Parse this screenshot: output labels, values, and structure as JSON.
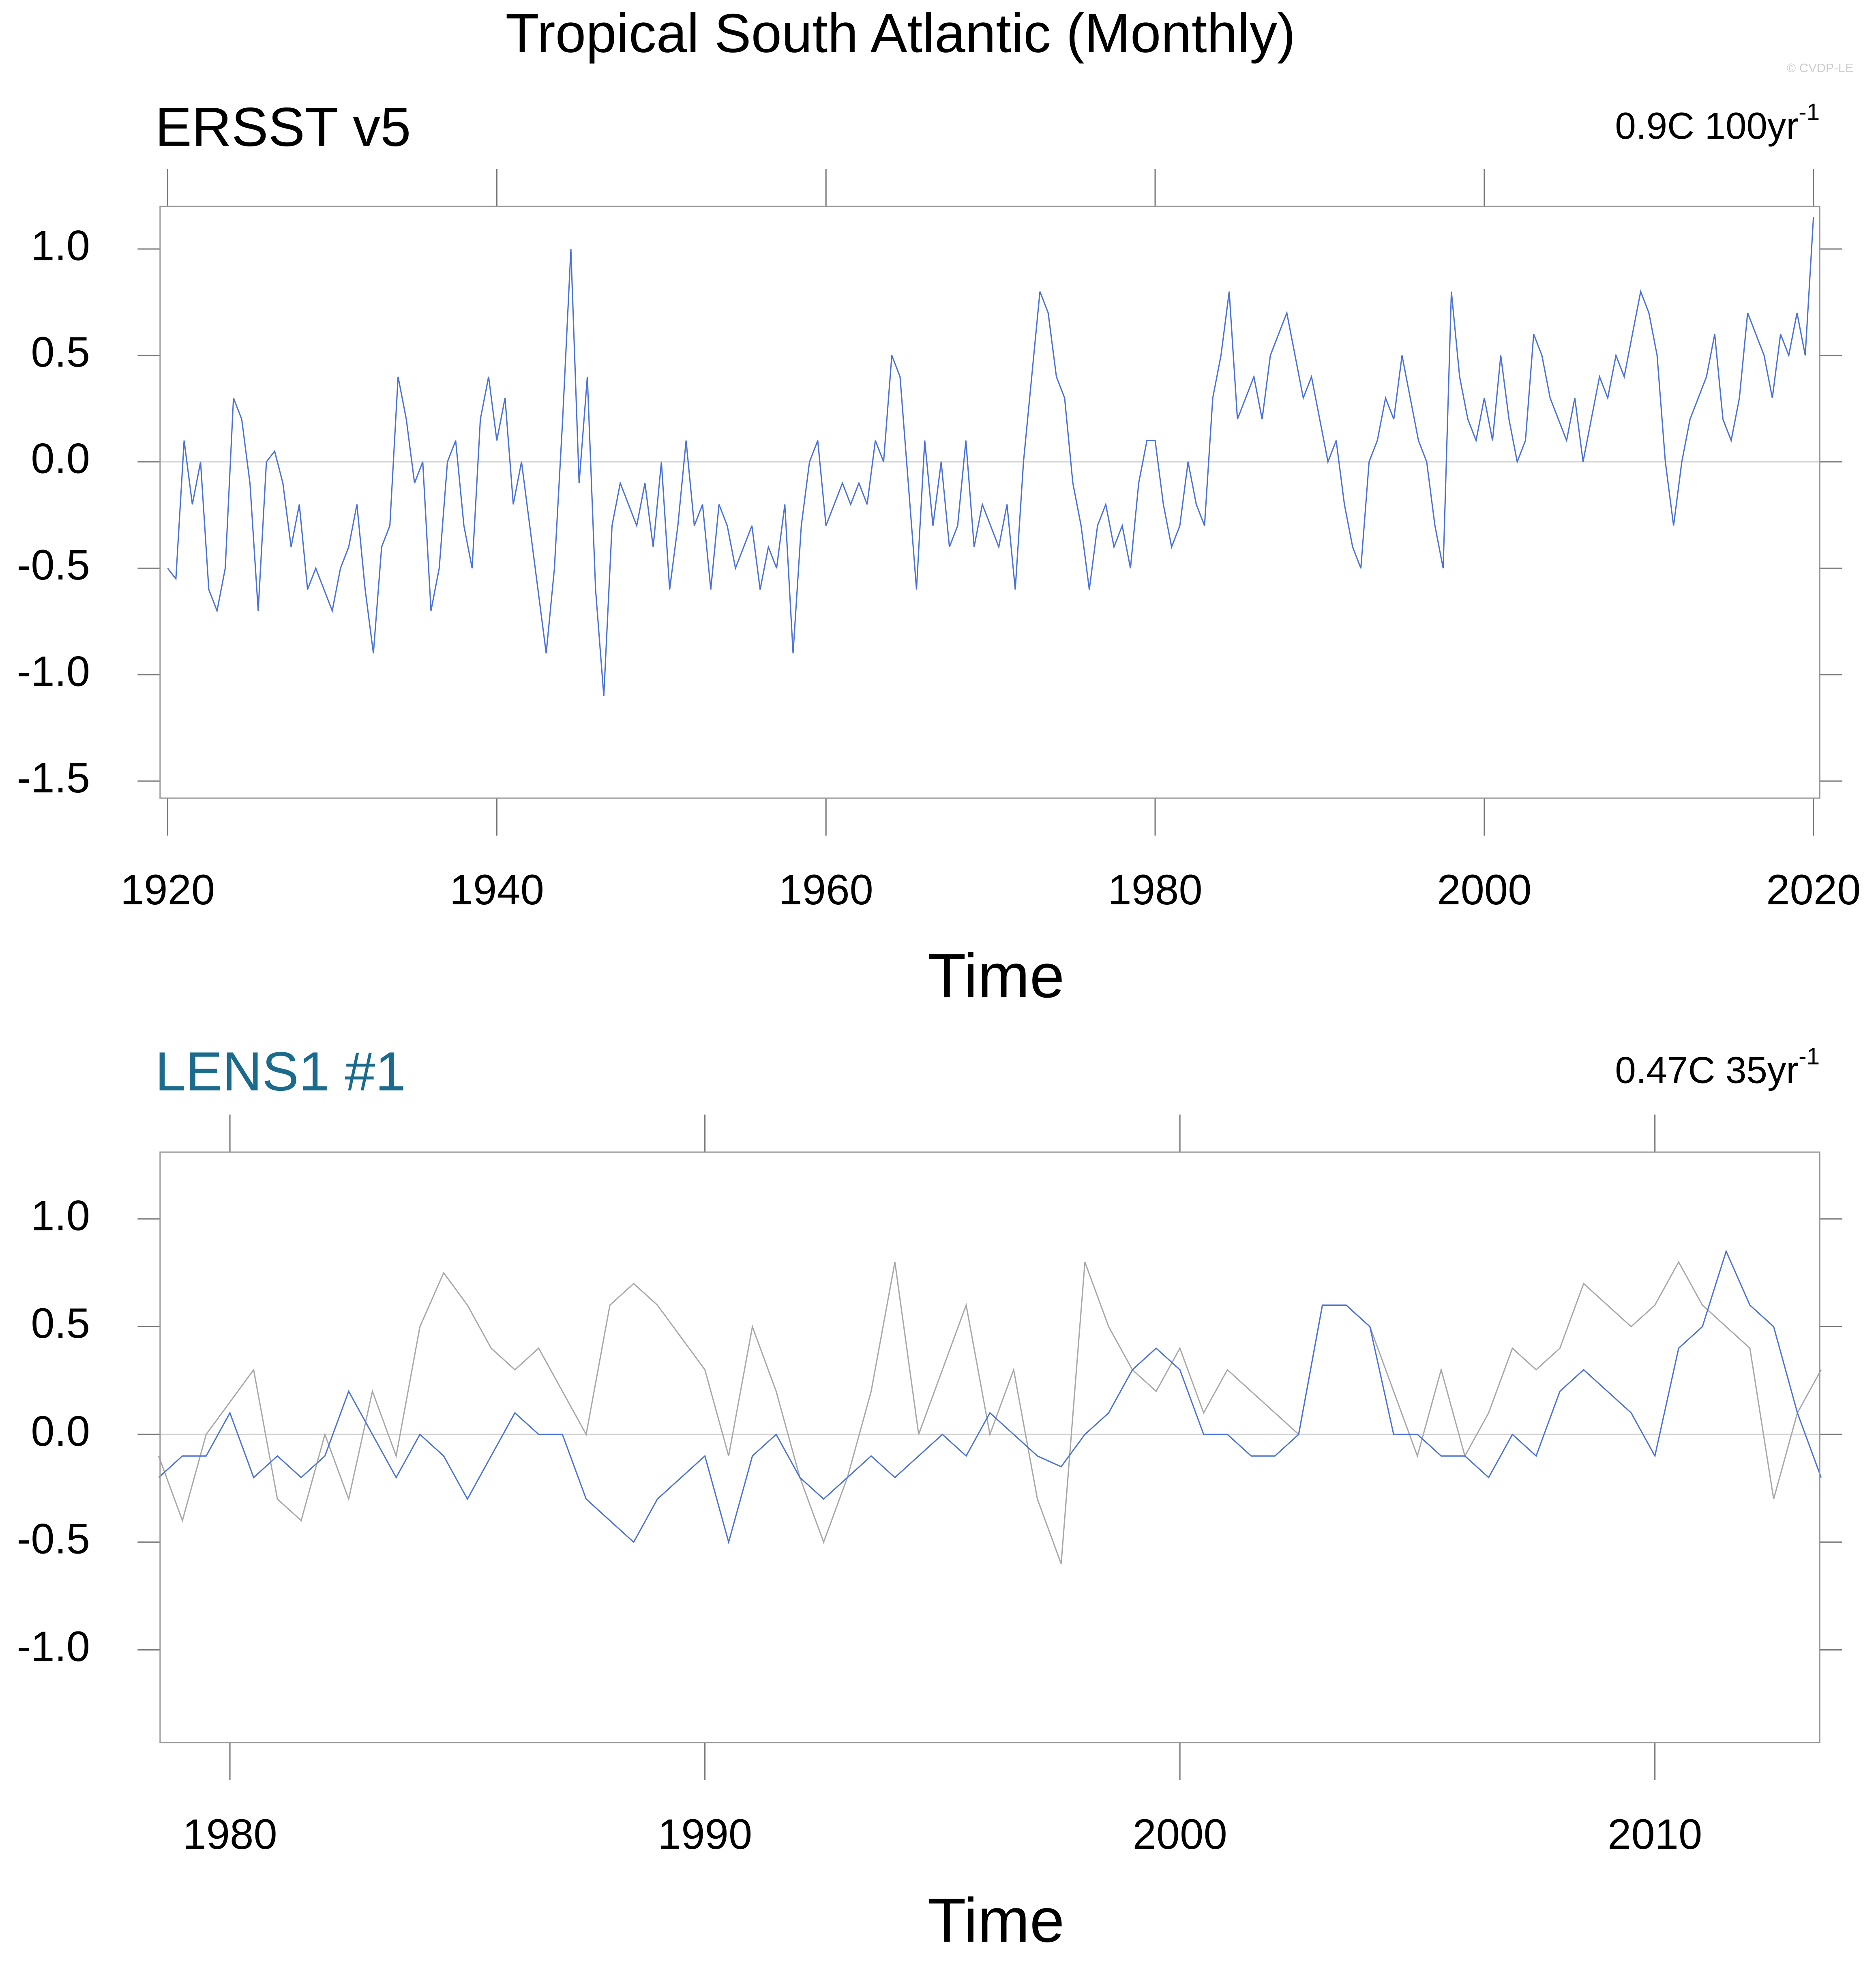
{
  "title": "Tropical South Atlantic (Monthly)",
  "watermark": "© CVDP-LE",
  "chart_data": [
    {
      "type": "line",
      "title": "ERSST v5",
      "title_color": "#000000",
      "trend": "0.9C 100yr",
      "trend_sup": "-1",
      "xlabel": "Time",
      "xlim": [
        1919.54,
        2020.38
      ],
      "xticks": [
        1920,
        1940,
        1960,
        1980,
        2000,
        2020
      ],
      "ylim": [
        -1.58,
        1.2
      ],
      "yticks": [
        -1.5,
        {
          "value": -1,
          "label": "-1.0"
        },
        -0.5,
        {
          "value": 0,
          "label": "0.0"
        },
        0.5,
        {
          "value": 1,
          "label": "1.0"
        }
      ],
      "x": [
        1920,
        1920.5,
        1921,
        1921.5,
        1922,
        1922.5,
        1923,
        1923.5,
        1924,
        1924.5,
        1925,
        1925.5,
        1926,
        1926.5,
        1927,
        1927.5,
        1928,
        1928.5,
        1929,
        1929.5,
        1930,
        1930.5,
        1931,
        1931.5,
        1932,
        1932.5,
        1933,
        1933.5,
        1934,
        1934.5,
        1935,
        1935.5,
        1936,
        1936.5,
        1937,
        1937.5,
        1938,
        1938.5,
        1939,
        1939.5,
        1940,
        1940.5,
        1941,
        1941.5,
        1942,
        1942.5,
        1943,
        1943.5,
        1944,
        1944.5,
        1945,
        1945.5,
        1946,
        1946.5,
        1947,
        1947.5,
        1948,
        1948.5,
        1949,
        1949.5,
        1950,
        1950.5,
        1951,
        1951.5,
        1952,
        1952.5,
        1953,
        1953.5,
        1954,
        1954.5,
        1955,
        1955.5,
        1956,
        1956.5,
        1957,
        1957.5,
        1958,
        1958.5,
        1959,
        1959.5,
        1960,
        1960.5,
        1961,
        1961.5,
        1962,
        1962.5,
        1963,
        1963.5,
        1964,
        1964.5,
        1965,
        1965.5,
        1966,
        1966.5,
        1967,
        1967.5,
        1968,
        1968.5,
        1969,
        1969.5,
        1970,
        1970.5,
        1971,
        1971.5,
        1972,
        1972.5,
        1973,
        1973.5,
        1974,
        1974.5,
        1975,
        1975.5,
        1976,
        1976.5,
        1977,
        1977.5,
        1978,
        1978.5,
        1979,
        1979.5,
        1980,
        1980.5,
        1981,
        1981.5,
        1982,
        1982.5,
        1983,
        1983.5,
        1984,
        1984.5,
        1985,
        1985.5,
        1986,
        1986.5,
        1987,
        1987.5,
        1988,
        1988.5,
        1989,
        1989.5,
        1990,
        1990.5,
        1991,
        1991.5,
        1992,
        1992.5,
        1993,
        1993.5,
        1994,
        1994.5,
        1995,
        1995.5,
        1996,
        1996.5,
        1997,
        1997.5,
        1998,
        1998.5,
        1999,
        1999.5,
        2000,
        2000.5,
        2001,
        2001.5,
        2002,
        2002.5,
        2003,
        2003.5,
        2004,
        2004.5,
        2005,
        2005.5,
        2006,
        2006.5,
        2007,
        2007.5,
        2008,
        2008.5,
        2009,
        2009.5,
        2010,
        2010.5,
        2011,
        2011.5,
        2012,
        2012.5,
        2013,
        2013.5,
        2014,
        2014.5,
        2015,
        2015.5,
        2016,
        2016.5,
        2017,
        2017.5,
        2018,
        2018.5,
        2019,
        2019.5,
        2020
      ],
      "series": [
        {
          "color": "#4a72d8",
          "values": [
            -0.5,
            -0.55,
            0.1,
            -0.2,
            0.0,
            -0.6,
            -0.7,
            -0.5,
            0.3,
            0.2,
            -0.1,
            -0.7,
            0.0,
            0.05,
            -0.1,
            -0.4,
            -0.2,
            -0.6,
            -0.5,
            -0.6,
            -0.7,
            -0.5,
            -0.4,
            -0.2,
            -0.6,
            -0.9,
            -0.4,
            -0.3,
            0.4,
            0.2,
            -0.1,
            0.0,
            -0.7,
            -0.5,
            0.0,
            0.1,
            -0.3,
            -0.5,
            0.2,
            0.4,
            0.1,
            0.3,
            -0.2,
            0.0,
            -0.3,
            -0.6,
            -0.9,
            -0.5,
            0.2,
            1.0,
            -0.1,
            0.4,
            -0.6,
            -1.1,
            -0.3,
            -0.1,
            -0.2,
            -0.3,
            -0.1,
            -0.4,
            0.0,
            -0.6,
            -0.3,
            0.1,
            -0.3,
            -0.2,
            -0.6,
            -0.2,
            -0.3,
            -0.5,
            -0.4,
            -0.3,
            -0.6,
            -0.4,
            -0.5,
            -0.2,
            -0.9,
            -0.3,
            0.0,
            0.1,
            -0.3,
            -0.2,
            -0.1,
            -0.2,
            -0.1,
            -0.2,
            0.1,
            0.0,
            0.5,
            0.4,
            -0.1,
            -0.6,
            0.1,
            -0.3,
            0.0,
            -0.4,
            -0.3,
            0.1,
            -0.4,
            -0.2,
            -0.3,
            -0.4,
            -0.2,
            -0.6,
            0.0,
            0.4,
            0.8,
            0.7,
            0.4,
            0.3,
            -0.1,
            -0.3,
            -0.6,
            -0.3,
            -0.2,
            -0.4,
            -0.3,
            -0.5,
            -0.1,
            0.1,
            0.1,
            -0.2,
            -0.4,
            -0.3,
            0.0,
            -0.2,
            -0.3,
            0.3,
            0.5,
            0.8,
            0.2,
            0.3,
            0.4,
            0.2,
            0.5,
            0.6,
            0.7,
            0.5,
            0.3,
            0.4,
            0.2,
            0.0,
            0.1,
            -0.2,
            -0.4,
            -0.5,
            0.0,
            0.1,
            0.3,
            0.2,
            0.5,
            0.3,
            0.1,
            0.0,
            -0.3,
            -0.5,
            0.8,
            0.4,
            0.2,
            0.1,
            0.3,
            0.1,
            0.5,
            0.2,
            0.0,
            0.1,
            0.6,
            0.5,
            0.3,
            0.2,
            0.1,
            0.3,
            0.0,
            0.2,
            0.4,
            0.3,
            0.5,
            0.4,
            0.6,
            0.8,
            0.7,
            0.5,
            0.0,
            -0.3,
            0.0,
            0.2,
            0.3,
            0.4,
            0.6,
            0.2,
            0.1,
            0.3,
            0.7,
            0.6,
            0.5,
            0.3,
            0.6,
            0.5,
            0.7,
            0.5,
            1.15
          ]
        }
      ]
    },
    {
      "type": "line",
      "title": "LENS1 #1",
      "title_color": "#1a6b8c",
      "trend": "0.47C 35yr",
      "trend_sup": "-1",
      "xlabel": "Time",
      "xlim": [
        1978.53,
        2013.47
      ],
      "xticks": [
        1980,
        1990,
        2000,
        2010
      ],
      "ylim": [
        -1.43,
        1.31
      ],
      "yticks": [
        {
          "value": -1,
          "label": "-1.0"
        },
        -0.5,
        {
          "value": 0,
          "label": "0.0"
        },
        0.5,
        {
          "value": 1,
          "label": "1.0"
        }
      ],
      "x": [
        1978.5,
        1979,
        1979.5,
        1980,
        1980.5,
        1981,
        1981.5,
        1982,
        1982.5,
        1983,
        1983.5,
        1984,
        1984.5,
        1985,
        1985.5,
        1986,
        1986.5,
        1987,
        1987.5,
        1988,
        1988.5,
        1989,
        1989.5,
        1990,
        1990.5,
        1991,
        1991.5,
        1992,
        1992.5,
        1993,
        1993.5,
        1994,
        1994.5,
        1995,
        1995.5,
        1996,
        1996.5,
        1997,
        1997.5,
        1998,
        1998.5,
        1999,
        1999.5,
        2000,
        2000.5,
        2001,
        2001.5,
        2002,
        2002.5,
        2003,
        2003.5,
        2004,
        2004.5,
        2005,
        2005.5,
        2006,
        2006.5,
        2007,
        2007.5,
        2008,
        2008.5,
        2009,
        2009.5,
        2010,
        2010.5,
        2011,
        2011.5,
        2012,
        2012.5,
        2013,
        2013.5
      ],
      "series": [
        {
          "color": "#a8a8a8",
          "values": [
            -0.1,
            -0.4,
            0.0,
            0.15,
            0.3,
            -0.3,
            -0.4,
            0.0,
            -0.3,
            0.2,
            -0.1,
            0.5,
            0.75,
            0.6,
            0.4,
            0.3,
            0.4,
            0.2,
            0.0,
            0.6,
            0.7,
            0.6,
            0.45,
            0.3,
            -0.1,
            0.5,
            0.2,
            -0.2,
            -0.5,
            -0.2,
            0.2,
            0.8,
            0.0,
            0.3,
            0.6,
            0.0,
            0.3,
            -0.3,
            -0.6,
            0.8,
            0.5,
            0.3,
            0.2,
            0.4,
            0.1,
            0.3,
            0.2,
            0.1,
            0.0,
            0.6,
            0.6,
            0.5,
            0.2,
            -0.1,
            0.3,
            -0.1,
            0.1,
            0.4,
            0.3,
            0.4,
            0.7,
            0.6,
            0.5,
            0.6,
            0.8,
            0.6,
            0.5,
            0.4,
            -0.3,
            0.1,
            0.3
          ]
        },
        {
          "color": "#4a72d8",
          "values": [
            -0.2,
            -0.1,
            -0.1,
            0.1,
            -0.2,
            -0.1,
            -0.2,
            -0.1,
            0.2,
            0.0,
            -0.2,
            0.0,
            -0.1,
            -0.3,
            -0.1,
            0.1,
            0.0,
            0.0,
            -0.3,
            -0.4,
            -0.5,
            -0.3,
            -0.2,
            -0.1,
            -0.5,
            -0.1,
            0.0,
            -0.2,
            -0.3,
            -0.2,
            -0.1,
            -0.2,
            -0.1,
            0.0,
            -0.1,
            0.1,
            0.0,
            -0.1,
            -0.15,
            0.0,
            0.1,
            0.3,
            0.4,
            0.3,
            0.0,
            0.0,
            -0.1,
            -0.1,
            0.0,
            0.6,
            0.6,
            0.5,
            0.0,
            0.0,
            -0.1,
            -0.1,
            -0.2,
            0.0,
            -0.1,
            0.2,
            0.3,
            0.2,
            0.1,
            -0.1,
            0.4,
            0.5,
            0.85,
            0.6,
            0.5,
            0.1,
            -0.2
          ]
        }
      ]
    }
  ]
}
